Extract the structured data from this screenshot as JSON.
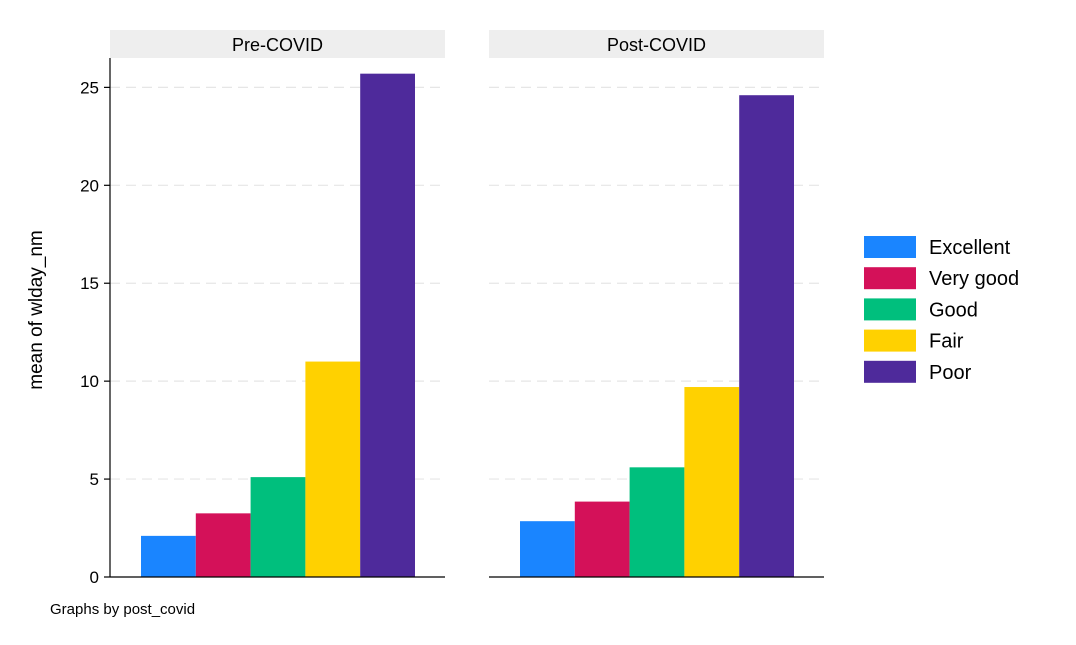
{
  "chart_data": {
    "type": "bar",
    "ylabel": "mean of wlday_nm",
    "ylim": [
      0,
      26.5
    ],
    "yticks": [
      0,
      5,
      10,
      15,
      20,
      25
    ],
    "grid": true,
    "legend_position": "right",
    "categories": [
      "Excellent",
      "Very good",
      "Good",
      "Fair",
      "Poor"
    ],
    "colors": [
      "#1a85ff",
      "#d41159",
      "#00bf7d",
      "#ffd100",
      "#4e2a9b"
    ],
    "panels": [
      {
        "title": "Pre-COVID",
        "values": [
          2.1,
          3.25,
          5.1,
          11.0,
          25.7
        ]
      },
      {
        "title": "Post-COVID",
        "values": [
          2.85,
          3.85,
          5.6,
          9.7,
          24.6
        ]
      }
    ],
    "note": "Graphs by post_covid"
  }
}
